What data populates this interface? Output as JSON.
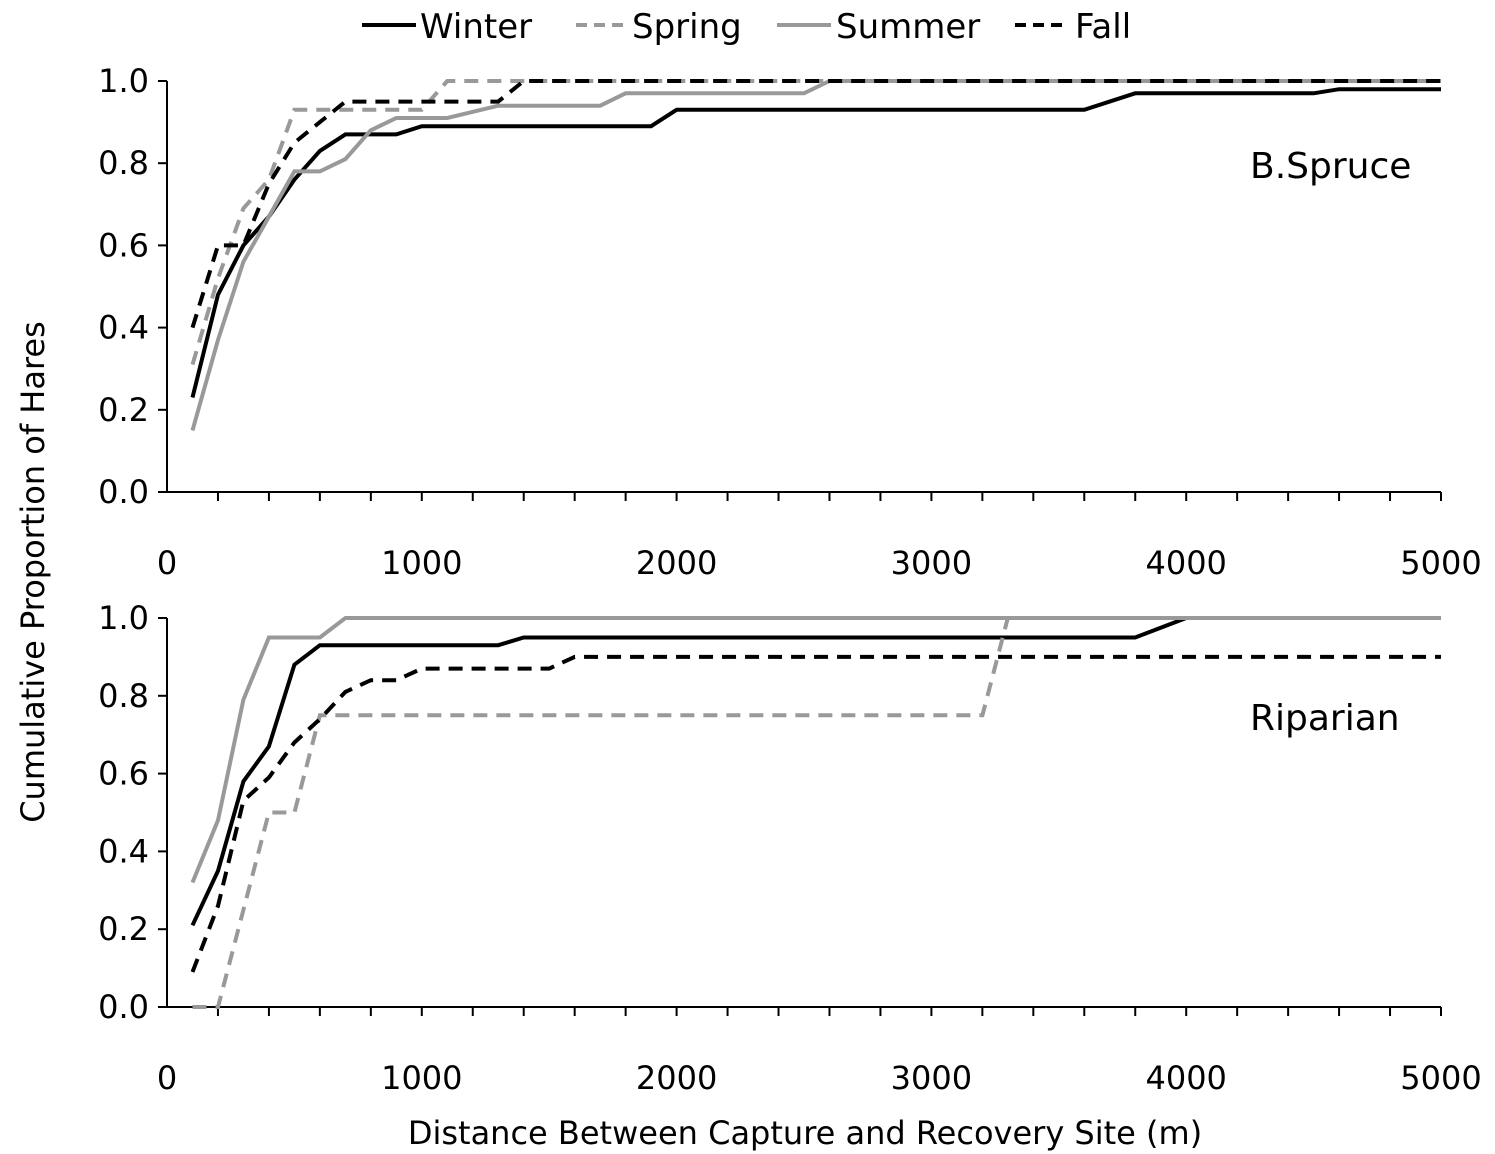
{
  "chart_data": {
    "type": "line",
    "xlabel": "Distance Between Capture and Recovery Site (m)",
    "ylabel": "Cumulative Proportion of Hares",
    "xlim": [
      0,
      5000
    ],
    "ylim": [
      0,
      1.0
    ],
    "x_ticks": [
      "0",
      "1000",
      "2000",
      "3000",
      "4000",
      "5000"
    ],
    "y_ticks": [
      "0.0",
      "0.2",
      "0.4",
      "0.6",
      "0.8",
      "1.0"
    ],
    "legend": [
      {
        "name": "Winter",
        "color": "#000000",
        "dash": "solid"
      },
      {
        "name": "Spring",
        "color": "#999999",
        "dash": "dashed"
      },
      {
        "name": "Summer",
        "color": "#999999",
        "dash": "solid"
      },
      {
        "name": "Fall",
        "color": "#000000",
        "dash": "dashed"
      }
    ],
    "legend_position": "top-center",
    "panels": [
      {
        "label": "B.Spruce",
        "series": [
          {
            "name": "Winter",
            "points": [
              [
                100,
                0.23
              ],
              [
                200,
                0.48
              ],
              [
                300,
                0.6
              ],
              [
                400,
                0.67
              ],
              [
                500,
                0.76
              ],
              [
                600,
                0.83
              ],
              [
                700,
                0.87
              ],
              [
                900,
                0.87
              ],
              [
                1000,
                0.89
              ],
              [
                1900,
                0.89
              ],
              [
                2000,
                0.93
              ],
              [
                3600,
                0.93
              ],
              [
                3800,
                0.97
              ],
              [
                4500,
                0.97
              ],
              [
                4600,
                0.98
              ],
              [
                5000,
                0.98
              ]
            ]
          },
          {
            "name": "Spring",
            "points": [
              [
                100,
                0.31
              ],
              [
                200,
                0.52
              ],
              [
                300,
                0.69
              ],
              [
                400,
                0.76
              ],
              [
                500,
                0.93
              ],
              [
                1000,
                0.93
              ],
              [
                1100,
                1.0
              ],
              [
                5000,
                1.0
              ]
            ]
          },
          {
            "name": "Summer",
            "points": [
              [
                100,
                0.15
              ],
              [
                200,
                0.37
              ],
              [
                300,
                0.56
              ],
              [
                400,
                0.67
              ],
              [
                500,
                0.78
              ],
              [
                600,
                0.78
              ],
              [
                700,
                0.81
              ],
              [
                800,
                0.88
              ],
              [
                900,
                0.91
              ],
              [
                1100,
                0.91
              ],
              [
                1300,
                0.94
              ],
              [
                1700,
                0.94
              ],
              [
                1800,
                0.97
              ],
              [
                2500,
                0.97
              ],
              [
                2600,
                1.0
              ],
              [
                5000,
                1.0
              ]
            ]
          },
          {
            "name": "Fall",
            "points": [
              [
                100,
                0.4
              ],
              [
                200,
                0.6
              ],
              [
                300,
                0.6
              ],
              [
                400,
                0.75
              ],
              [
                500,
                0.85
              ],
              [
                600,
                0.9
              ],
              [
                700,
                0.95
              ],
              [
                1300,
                0.95
              ],
              [
                1400,
                1.0
              ],
              [
                5000,
                1.0
              ]
            ]
          }
        ]
      },
      {
        "label": "Riparian",
        "series": [
          {
            "name": "Winter",
            "points": [
              [
                100,
                0.21
              ],
              [
                200,
                0.35
              ],
              [
                300,
                0.58
              ],
              [
                400,
                0.67
              ],
              [
                500,
                0.88
              ],
              [
                600,
                0.93
              ],
              [
                1300,
                0.93
              ],
              [
                1400,
                0.95
              ],
              [
                3800,
                0.95
              ],
              [
                4000,
                1.0
              ],
              [
                5000,
                1.0
              ]
            ]
          },
          {
            "name": "Spring",
            "points": [
              [
                100,
                0.0
              ],
              [
                200,
                0.0
              ],
              [
                400,
                0.5
              ],
              [
                500,
                0.5
              ],
              [
                600,
                0.75
              ],
              [
                3200,
                0.75
              ],
              [
                3300,
                1.0
              ],
              [
                5000,
                1.0
              ]
            ]
          },
          {
            "name": "Summer",
            "points": [
              [
                100,
                0.32
              ],
              [
                200,
                0.48
              ],
              [
                300,
                0.79
              ],
              [
                400,
                0.95
              ],
              [
                600,
                0.95
              ],
              [
                700,
                1.0
              ],
              [
                5000,
                1.0
              ]
            ]
          },
          {
            "name": "Fall",
            "points": [
              [
                100,
                0.09
              ],
              [
                200,
                0.26
              ],
              [
                300,
                0.53
              ],
              [
                400,
                0.59
              ],
              [
                500,
                0.68
              ],
              [
                600,
                0.74
              ],
              [
                700,
                0.81
              ],
              [
                800,
                0.84
              ],
              [
                900,
                0.84
              ],
              [
                1000,
                0.87
              ],
              [
                1500,
                0.87
              ],
              [
                1600,
                0.9
              ],
              [
                5000,
                0.9
              ]
            ]
          }
        ]
      }
    ]
  }
}
